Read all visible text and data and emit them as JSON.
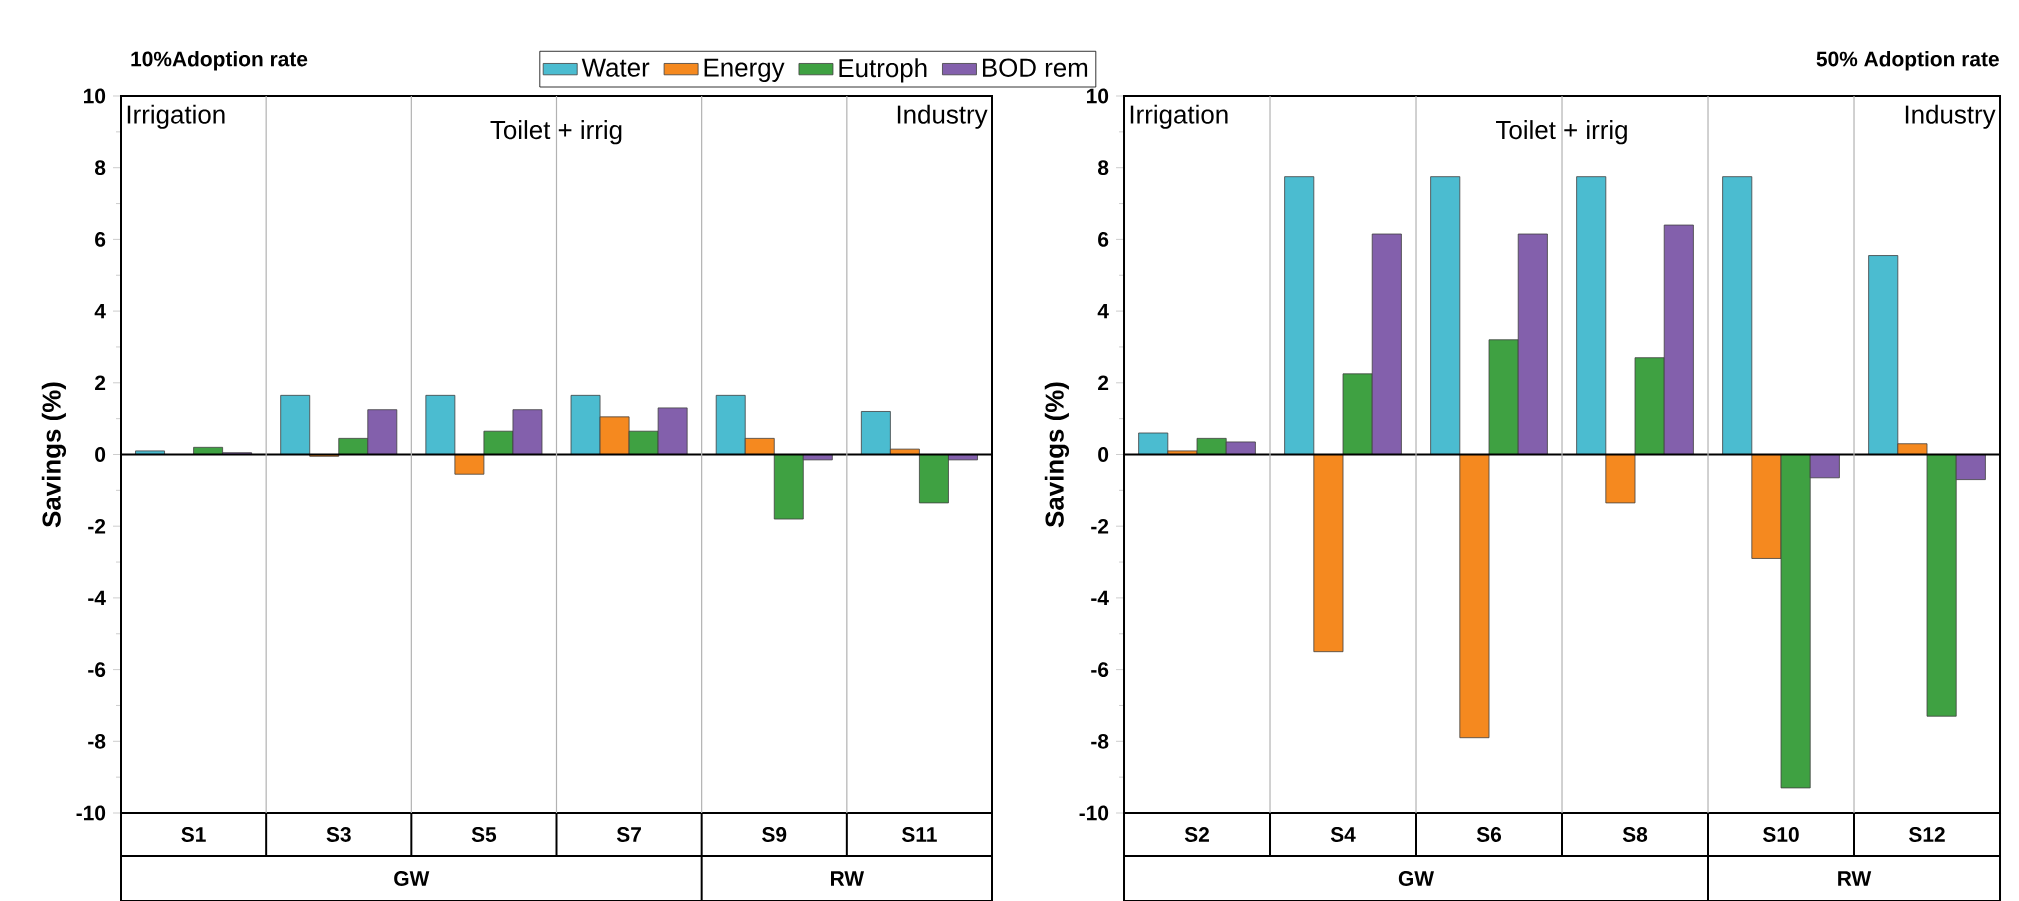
{
  "chart_data": [
    {
      "type": "bar",
      "title": "10%Adoption rate",
      "ylabel": "Savings (%)",
      "categories": [
        "S1",
        "S3",
        "S5",
        "S7",
        "S9",
        "S11"
      ],
      "series": [
        {
          "name": "Water",
          "color": "#4bbcd0",
          "values": [
            0.1,
            1.65,
            1.65,
            1.65,
            1.65,
            1.2
          ]
        },
        {
          "name": "Energy",
          "color": "#f5891f",
          "values": [
            null,
            -0.05,
            -0.55,
            1.05,
            0.45,
            0.15
          ]
        },
        {
          "name": "Eutroph",
          "color": "#3fa142",
          "values": [
            0.2,
            0.45,
            0.65,
            0.65,
            -1.8,
            -1.35
          ]
        },
        {
          "name": "BOD rem",
          "color": "#8360ac",
          "values": [
            0.05,
            1.25,
            1.25,
            1.3,
            -0.15,
            -0.15
          ]
        }
      ],
      "ylim": [
        -10,
        10
      ],
      "yticks": [
        -10,
        -8,
        -6,
        -4,
        -2,
        0,
        2,
        4,
        6,
        8,
        10
      ],
      "legend": "top",
      "annotations": [
        "Irrigation",
        "Toilet + irrig",
        "Industry",
        "GW",
        "RW"
      ]
    },
    {
      "type": "bar",
      "title": "50% Adoption rate",
      "ylabel": "Savings (%)",
      "categories": [
        "S2",
        "S4",
        "S6",
        "S8",
        "S10",
        "S12"
      ],
      "series": [
        {
          "color": "#4bbcd0",
          "values": [
            0.6,
            7.75,
            7.75,
            7.75,
            7.75,
            5.55
          ]
        },
        {
          "color": "#f5891f",
          "values": [
            0.1,
            -5.5,
            -7.9,
            -1.35,
            -2.9,
            0.3
          ]
        },
        {
          "color": "#3fa142",
          "values": [
            0.45,
            2.25,
            3.2,
            2.7,
            -9.3,
            -7.3
          ]
        },
        {
          "color": "#8360ac",
          "values": [
            0.35,
            6.15,
            6.15,
            6.4,
            -0.65,
            -0.7
          ]
        }
      ],
      "ylim": [
        -10,
        10
      ],
      "yticks": [
        -10,
        -8,
        -6,
        -4,
        -2,
        0,
        2,
        4,
        6,
        8,
        10
      ],
      "annotations": [
        "Irrigation",
        "Toilet + irrig",
        "Industry",
        "GW",
        "RW"
      ]
    }
  ]
}
